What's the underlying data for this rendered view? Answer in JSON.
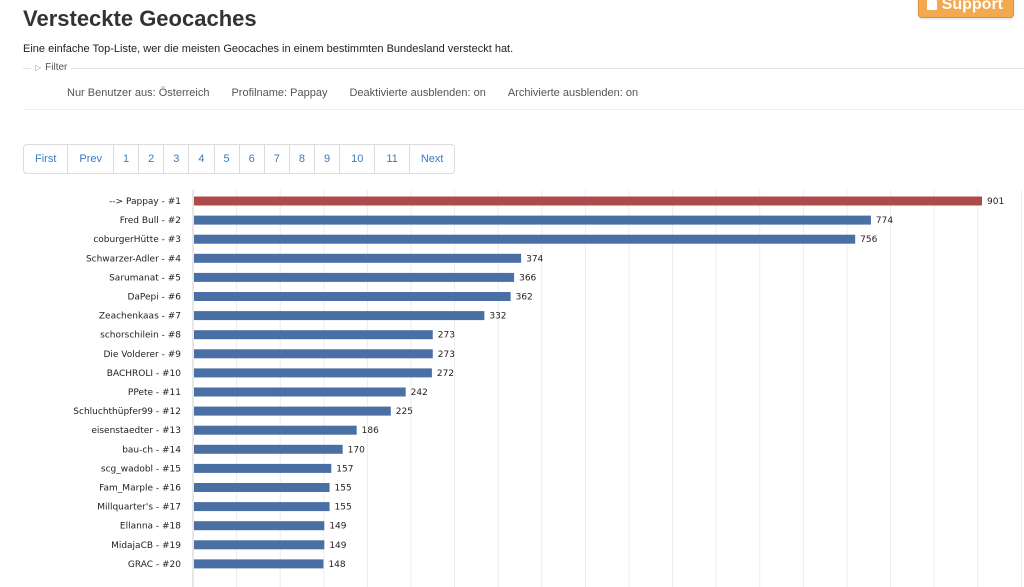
{
  "header": {
    "title": "Versteckte Geocaches",
    "support_label": "Support",
    "subtitle": "Eine einfache Top-Liste, wer die meisten Geocaches in einem bestimmten Bundesland versteckt hat."
  },
  "filter": {
    "legend": "Filter",
    "values": [
      "Nur Benutzer aus: Österreich",
      "Profilname: Pappay",
      "Deaktivierte ausblenden: on",
      "Archivierte ausblenden: on"
    ]
  },
  "pagination": [
    "First",
    "Prev",
    "1",
    "2",
    "3",
    "4",
    "5",
    "6",
    "7",
    "8",
    "9",
    "10",
    "11",
    "Next"
  ],
  "colors": {
    "highlight": "#b04a4a",
    "bar": "#4a6fa5"
  },
  "chart_data": {
    "type": "bar",
    "orientation": "horizontal",
    "categories": [
      "--> Pappay - #1",
      "Fred Bull - #2",
      "coburgerHütte - #3",
      "Schwarzer-Adler - #4",
      "Sarumanat - #5",
      "DaPepi - #6",
      "Zeachenkaas - #7",
      "schorschilein - #8",
      "Die Volderer - #9",
      "BACHROLI - #10",
      "PPete - #11",
      "Schluchthüpfer99 - #12",
      "eisenstaedter - #13",
      "bau-ch - #14",
      "scg_wadobl - #15",
      "Fam_Marple - #16",
      "Millquarter's - #17",
      "Ellanna - #18",
      "MidajaCB - #19",
      "GRAC - #20"
    ],
    "values": [
      901,
      774,
      756,
      374,
      366,
      362,
      332,
      273,
      273,
      272,
      242,
      225,
      186,
      170,
      157,
      155,
      155,
      149,
      149,
      148
    ],
    "highlight_index": 0,
    "xlim": [
      0,
      901
    ],
    "grid": true,
    "data_labels": true
  }
}
